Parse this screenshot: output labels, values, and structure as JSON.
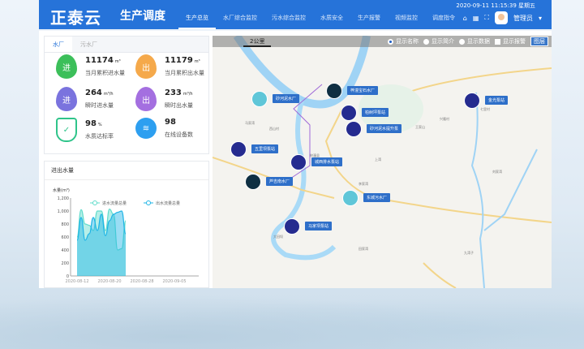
{
  "header": {
    "logo": "正泰云",
    "app_title": "生产调度",
    "nav": [
      "生产总览",
      "水厂综合监控",
      "污水综合监控",
      "水质安全",
      "生产报警",
      "视频监控",
      "调度指令"
    ],
    "active_nav": 0,
    "datetime": "2020-09-11 11:15:39 星期五",
    "user": "管理员"
  },
  "stats": {
    "tabs": [
      "水厂",
      "污水厂"
    ],
    "active_tab": 0,
    "items": [
      {
        "value": "11174",
        "unit": "m³",
        "label": "当月累积进水量",
        "icon": "water-drop-in-icon",
        "badge": "进",
        "color": "#3cbf5a"
      },
      {
        "value": "11179",
        "unit": "m³",
        "label": "当月累积出水量",
        "icon": "water-drop-out-icon",
        "badge": "出",
        "color": "#f5a94b"
      },
      {
        "value": "264",
        "unit": "m³/h",
        "label": "瞬时进水量",
        "icon": "water-drop-in-icon",
        "badge": "进",
        "color": "#7a73de"
      },
      {
        "value": "233",
        "unit": "m³/h",
        "label": "瞬时出水量",
        "icon": "water-drop-out-icon",
        "badge": "出",
        "color": "#a46fe0"
      },
      {
        "value": "98",
        "unit": "%",
        "label": "水质达标率",
        "icon": "shield-check-icon",
        "badge": "✓",
        "color": "#2fc48a"
      },
      {
        "value": "98",
        "unit": "",
        "label": "在线设备数",
        "icon": "wifi-icon",
        "badge": "",
        "color": "#2d9ff0"
      }
    ]
  },
  "chart_data": {
    "type": "area",
    "title": "进出水量",
    "ylabel": "水量(m³)",
    "ylim": [
      0,
      1200
    ],
    "yticks": [
      "0",
      "200",
      "400",
      "600",
      "800",
      "1,000",
      "1,200"
    ],
    "xticks": [
      "2020-08-12",
      "2020-08-20",
      "2020-08-28",
      "2020-09-05"
    ],
    "x": [
      "2020-08-12",
      "2020-08-13",
      "2020-08-14",
      "2020-08-15",
      "2020-08-16",
      "2020-08-17",
      "2020-08-18",
      "2020-08-19",
      "2020-08-20",
      "2020-08-21",
      "2020-08-22",
      "2020-08-23",
      "2020-08-24"
    ],
    "series": [
      {
        "name": "进水流量总量",
        "color": "#5fdccb",
        "values": [
          600,
          1020,
          800,
          780,
          700,
          1000,
          1000,
          700,
          1030,
          950,
          400,
          420,
          850
        ]
      },
      {
        "name": "出水流量总量",
        "color": "#1fb4e6",
        "values": [
          550,
          900,
          550,
          650,
          900,
          700,
          950,
          620,
          850,
          950,
          980,
          1000,
          650
        ]
      }
    ]
  },
  "map": {
    "scale": "2公里",
    "options": [
      "显示名称",
      "显示简介",
      "显示数据",
      "显示报警"
    ],
    "selected_option": 0,
    "button": "图层",
    "stations": [
      {
        "name": "砂河泥水厂",
        "type": "sewage"
      },
      {
        "name": "梓潼宝石水厂",
        "type": "plant"
      },
      {
        "name": "柏树坪泵站",
        "type": "pump"
      },
      {
        "name": "砂河泥水提升泵",
        "type": "pump"
      },
      {
        "name": "五里坝泵站",
        "type": "pump"
      },
      {
        "name": "城西排水泵站",
        "type": "pump"
      },
      {
        "name": "芦吉南水厂",
        "type": "plant"
      },
      {
        "name": "东城污水厂",
        "type": "sewage"
      },
      {
        "name": "马家坝泵站",
        "type": "pump"
      },
      {
        "name": "金光泵站",
        "type": "pump"
      }
    ],
    "places": [
      "梓潼县",
      "马家湾",
      "西山村",
      "田家湾",
      "王家山",
      "上湾",
      "九湾子",
      "刘家湾",
      "大田坝",
      "李家湾",
      "兴隆村",
      "七里村"
    ]
  }
}
